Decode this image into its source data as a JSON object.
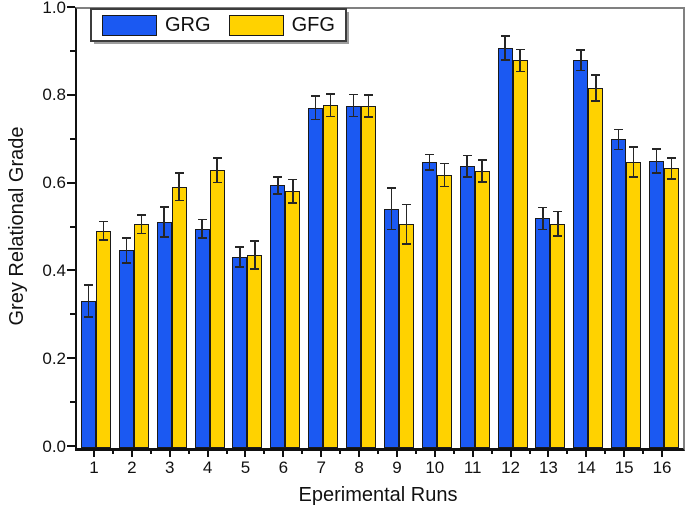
{
  "figure": {
    "background": "#ffffff"
  },
  "chart_data": {
    "type": "bar",
    "title": "",
    "xlabel": "Eperimental Runs",
    "ylabel": "Grey Relational Grade",
    "ylim": [
      0.0,
      1.0
    ],
    "ytick_values": [
      0.0,
      0.2,
      0.4,
      0.6,
      0.8,
      1.0
    ],
    "ytick_labels": [
      "0.0",
      "0.2",
      "0.4",
      "0.6",
      "0.8",
      "1.0"
    ],
    "yminor_values": [
      0.1,
      0.3,
      0.5,
      0.7,
      0.9
    ],
    "grid": false,
    "legend_position": "top-left",
    "error_bar_color": "#262626",
    "categories": [
      "1",
      "2",
      "3",
      "4",
      "5",
      "6",
      "7",
      "8",
      "9",
      "10",
      "11",
      "12",
      "13",
      "14",
      "15",
      "16"
    ],
    "series": [
      {
        "name": "GRG",
        "color": "#1b59f2",
        "border": "#1a1a1a",
        "values": [
          0.335,
          0.45,
          0.515,
          0.5,
          0.435,
          0.598,
          0.775,
          0.78,
          0.545,
          0.651,
          0.642,
          0.911,
          0.523,
          0.883,
          0.703,
          0.654
        ],
        "errors": [
          0.037,
          0.029,
          0.034,
          0.021,
          0.023,
          0.019,
          0.027,
          0.025,
          0.047,
          0.018,
          0.024,
          0.027,
          0.025,
          0.023,
          0.023,
          0.027
        ]
      },
      {
        "name": "GFG",
        "color": "#ffd200",
        "border": "#1a1a1a",
        "values": [
          0.495,
          0.51,
          0.595,
          0.633,
          0.44,
          0.585,
          0.781,
          0.779,
          0.51,
          0.622,
          0.631,
          0.883,
          0.511,
          0.82,
          0.652,
          0.637
        ],
        "errors": [
          0.021,
          0.021,
          0.031,
          0.028,
          0.032,
          0.027,
          0.026,
          0.025,
          0.045,
          0.026,
          0.025,
          0.025,
          0.028,
          0.03,
          0.034,
          0.024
        ]
      }
    ]
  }
}
